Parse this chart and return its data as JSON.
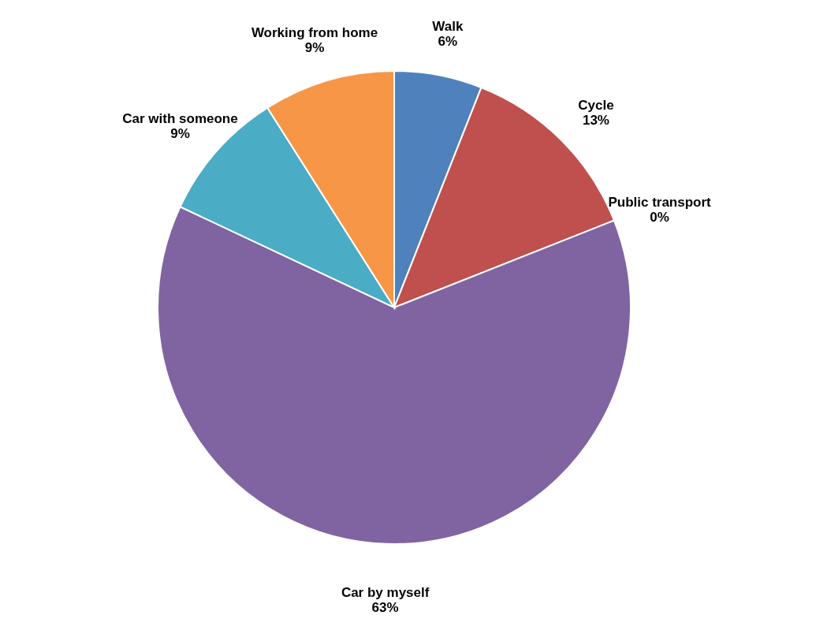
{
  "chart_data": {
    "type": "pie",
    "categories": [
      "Walk",
      "Cycle",
      "Public transport",
      "Car by myself",
      "Car with someone",
      "Working from home"
    ],
    "values": [
      6,
      13,
      0,
      63,
      9,
      9
    ],
    "colors": [
      "#4f81bd",
      "#c0504d",
      "#9bbb59",
      "#8064a2",
      "#4bacc6",
      "#f79646"
    ],
    "value_labels": [
      "6%",
      "13%",
      "0%",
      "63%",
      "9%",
      "9%"
    ],
    "legend": false
  }
}
